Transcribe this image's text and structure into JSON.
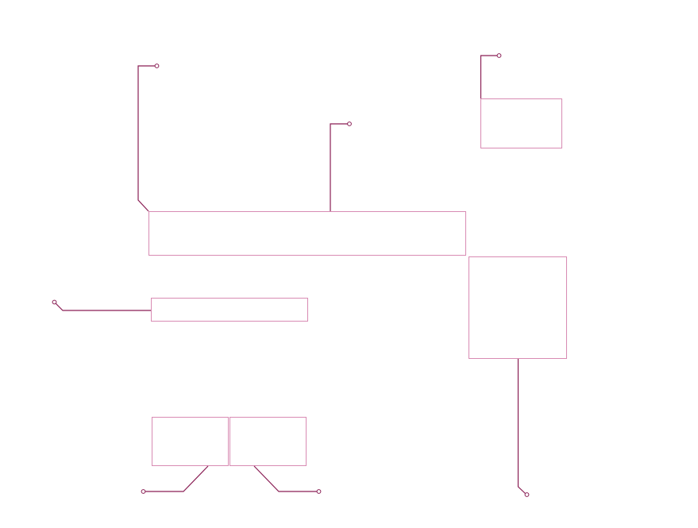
{
  "colors": {
    "box_border": "#d88bb3",
    "leader_line": "#8a1f55",
    "background": "#ffffff"
  },
  "callouts": [
    {
      "id": "top-right-box",
      "label": ""
    },
    {
      "id": "wide-center-box",
      "label": ""
    },
    {
      "id": "left-middle-box",
      "label": ""
    },
    {
      "id": "right-tall-box",
      "label": ""
    },
    {
      "id": "bottom-left-box",
      "label": ""
    },
    {
      "id": "bottom-right-box",
      "label": ""
    }
  ]
}
